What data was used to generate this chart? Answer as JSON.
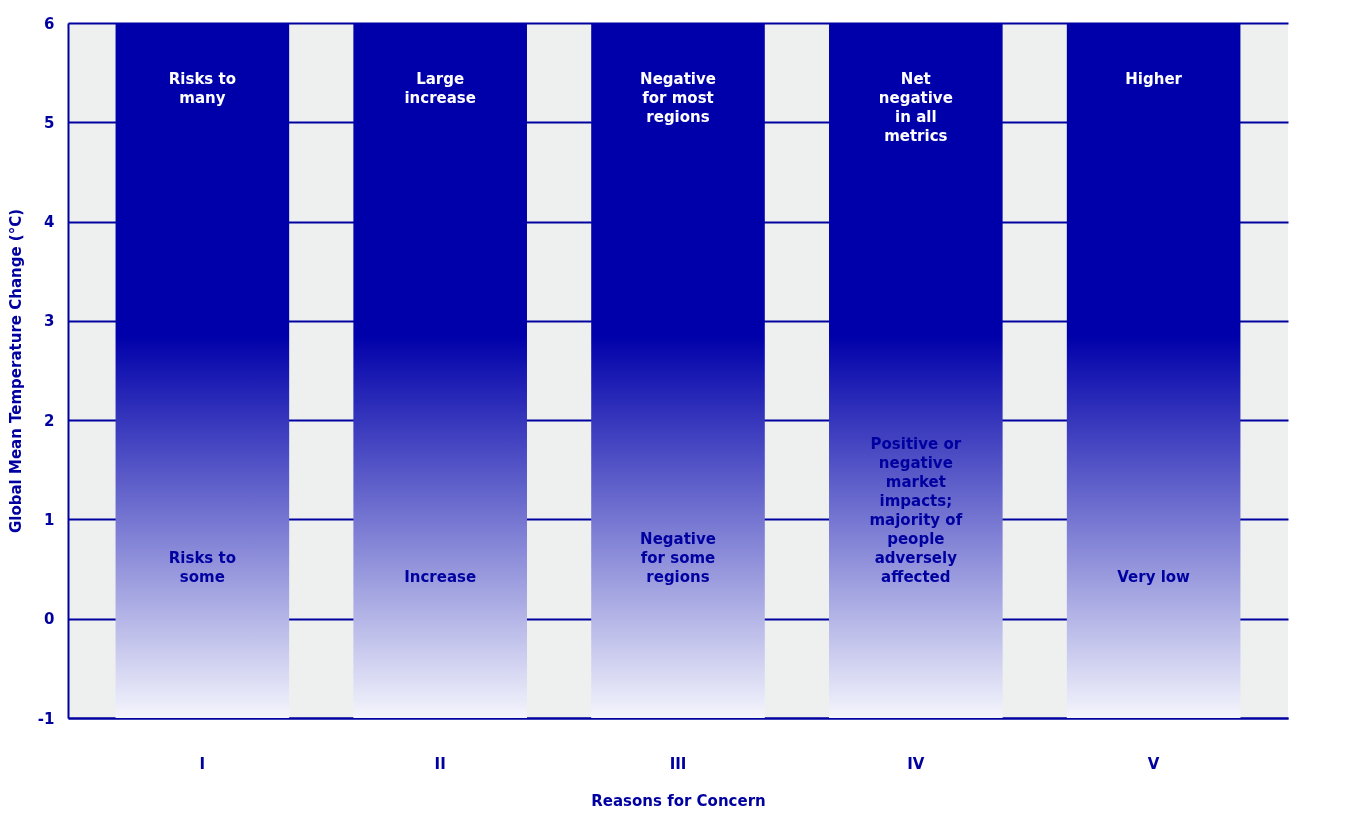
{
  "chart_data": {
    "type": "bar",
    "categories": [
      "I",
      "II",
      "III",
      "IV",
      "V"
    ],
    "base": [
      -1,
      -1,
      -1,
      -1,
      -1
    ],
    "values": [
      7,
      7,
      7,
      7,
      7
    ],
    "color": "#0000aa",
    "xlabel": "Reasons for Concern",
    "ylabel": "Global Mean Temperature Change (°C)",
    "ylim": [
      -1,
      6
    ],
    "yticks": [
      -1,
      0,
      1,
      2,
      3,
      4,
      5,
      6
    ],
    "grid": "y",
    "annotations": [
      "Risks to\nmany",
      "Risks to\nsome",
      "Large\nincrease",
      "Increase",
      "Negative\nfor most\nregions",
      "Negative\nfor some\nregions",
      "Net\nnegative\nin all\nmetrics",
      "Positive or\nnegative\nmarket\nimpacts;\nmajority of\npeople\nadversely\naffected",
      "Higher",
      "Very low"
    ]
  }
}
